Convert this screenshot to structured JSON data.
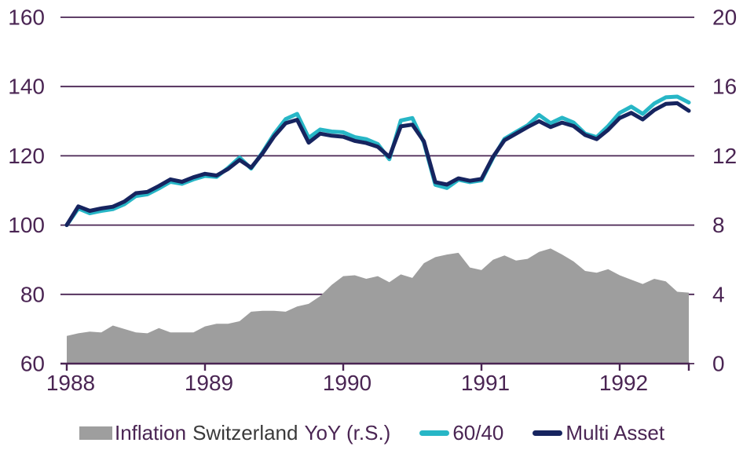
{
  "colors": {
    "background": "#ffffff",
    "axis_purple": "#4a2553",
    "cyan_6040": "#27b6c6",
    "navy_multi_asset": "#16245f",
    "inflation_gray": "#9e9e9e",
    "country_text": "#3a3a3a"
  },
  "legend": {
    "inflation": {
      "part1": "Inflation",
      "part2": "Switzerland",
      "part3": "YoY (r.S.)"
    },
    "sixty_forty": "60/40",
    "multi_asset": "Multi Asset"
  },
  "chart_data": {
    "type": "combo",
    "title": "",
    "frequency": "monthly",
    "start": "1988-01",
    "end": "1992-07",
    "grid": true,
    "legend_position": "bottom",
    "x_axis": {
      "tick_labels": [
        "1988",
        "1989",
        "1990",
        "1991",
        "1992"
      ],
      "months_per_tick": 12
    },
    "left_axis": {
      "range": [
        60,
        160
      ],
      "ticks": [
        160,
        140,
        120,
        100,
        80,
        60
      ]
    },
    "right_axis": {
      "range": [
        0,
        20
      ],
      "ticks": [
        20,
        16,
        12,
        8,
        4,
        0
      ]
    },
    "series": [
      {
        "name": "Inflation Switzerland YoY (r.S.)",
        "type": "area",
        "axis": "right",
        "color": "#9e9e9e",
        "values": [
          1.6,
          1.75,
          1.85,
          1.8,
          2.2,
          2.0,
          1.8,
          1.75,
          2.05,
          1.8,
          1.8,
          1.8,
          2.15,
          2.3,
          2.3,
          2.45,
          3.0,
          3.05,
          3.05,
          3.0,
          3.3,
          3.45,
          3.9,
          4.55,
          5.05,
          5.1,
          4.9,
          5.05,
          4.7,
          5.15,
          4.95,
          5.8,
          6.15,
          6.3,
          6.4,
          5.55,
          5.4,
          6.0,
          6.25,
          5.95,
          6.05,
          6.45,
          6.65,
          6.3,
          5.9,
          5.35,
          5.25,
          5.45,
          5.1,
          4.85,
          4.6,
          4.9,
          4.75,
          4.15,
          4.1
        ]
      },
      {
        "name": "60/40",
        "type": "line",
        "axis": "left",
        "color": "#27b6c6",
        "values": [
          100,
          104.8,
          103.4,
          104.1,
          104.6,
          106.0,
          108.4,
          108.9,
          110.6,
          112.5,
          111.9,
          113.2,
          114.2,
          113.9,
          116.5,
          119.5,
          116.3,
          121.0,
          126.3,
          130.6,
          132.1,
          125.2,
          127.6,
          127.0,
          126.8,
          125.4,
          124.8,
          123.4,
          119.0,
          130.2,
          130.9,
          123.8,
          111.6,
          110.7,
          113.1,
          112.4,
          112.9,
          119.4,
          124.9,
          126.9,
          128.8,
          131.8,
          129.4,
          131.0,
          129.6,
          126.4,
          125.4,
          128.6,
          132.4,
          134.2,
          132.1,
          135.1,
          136.9,
          137.1,
          135.4
        ]
      },
      {
        "name": "Multi Asset",
        "type": "line",
        "axis": "left",
        "color": "#16245f",
        "values": [
          100,
          105.4,
          104.1,
          104.8,
          105.3,
          106.8,
          109.2,
          109.6,
          111.3,
          113.2,
          112.5,
          113.8,
          114.8,
          114.3,
          116.2,
          118.8,
          116.6,
          120.7,
          125.6,
          129.4,
          130.4,
          123.8,
          126.4,
          125.8,
          125.5,
          124.3,
          123.7,
          122.6,
          119.7,
          128.5,
          129.0,
          124.2,
          112.4,
          111.7,
          113.5,
          112.8,
          113.3,
          119.7,
          124.5,
          126.4,
          128.3,
          130.0,
          128.3,
          129.6,
          128.6,
          126.0,
          124.8,
          127.5,
          130.9,
          132.4,
          130.5,
          133.2,
          135.0,
          135.2,
          133.0
        ]
      }
    ]
  }
}
